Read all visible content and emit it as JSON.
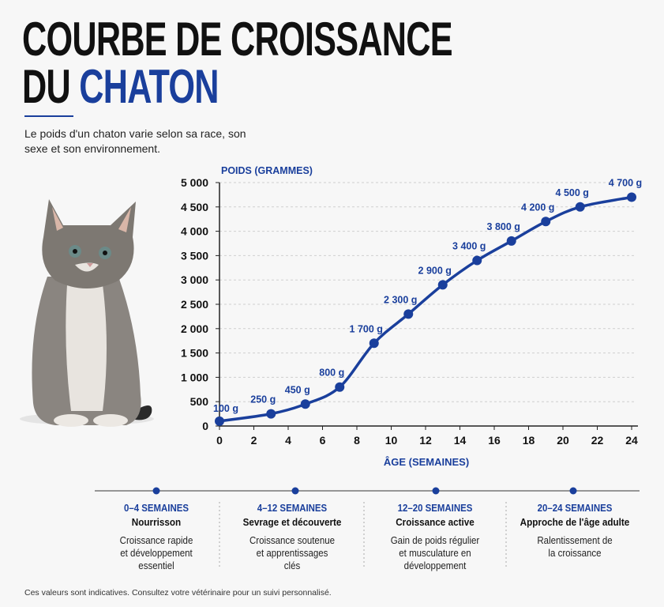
{
  "header": {
    "title_line1": "COURBE DE CROISSANCE",
    "title_line2_prefix": "DU",
    "title_line2_accent": "CHATON",
    "subtitle": "Le poids d'un chaton varie selon sa race, son sexe et son environnement."
  },
  "colors": {
    "accent": "#1a3f9c",
    "text": "#111111",
    "background": "#f7f7f7"
  },
  "chart_data": {
    "type": "line",
    "title": "",
    "xlabel": "ÂGE (SEMAINES)",
    "ylabel": "POIDS (GRAMMES)",
    "xlim": [
      0,
      24
    ],
    "ylim": [
      0,
      5000
    ],
    "grid": true,
    "x_ticks": [
      "0",
      "2",
      "4",
      "6",
      "8",
      "10",
      "12",
      "14",
      "16",
      "18",
      "20",
      "22",
      "24"
    ],
    "y_ticks": [
      "0",
      "500",
      "1 000",
      "1 500",
      "2 000",
      "2 500",
      "3 000",
      "3 500",
      "4 000",
      "4 500",
      "5 000"
    ],
    "x": [
      0,
      3,
      5,
      7,
      9,
      11,
      13,
      15,
      17,
      19,
      21,
      24
    ],
    "y": [
      100,
      250,
      450,
      800,
      1700,
      2300,
      2900,
      3400,
      3800,
      4200,
      4500,
      4700
    ],
    "data_labels": [
      "100 g",
      "250 g",
      "450 g",
      "800 g",
      "1 700 g",
      "2 300 g",
      "2 900 g",
      "3 400 g",
      "3 800 g",
      "4 200 g",
      "4 500 g",
      "4 700 g"
    ]
  },
  "stages": [
    {
      "range": "0–4 SEMAINES",
      "name": "Nourrisson",
      "desc": "Croissance rapide et développement essentiel"
    },
    {
      "range": "4–12 SEMAINES",
      "name": "Sevrage et découverte",
      "desc": "Croissance soutenue et apprentissages clés"
    },
    {
      "range": "12–20 SEMAINES",
      "name": "Croissance active",
      "desc": "Gain de poids régulier et musculature en développement"
    },
    {
      "range": "20–24 SEMAINES",
      "name": "Approche de l'âge adulte",
      "desc": "Ralentissement de la croissance"
    }
  ],
  "footer": "Ces valeurs sont indicatives. Consultez votre vétérinaire pour un suivi personnalisé."
}
